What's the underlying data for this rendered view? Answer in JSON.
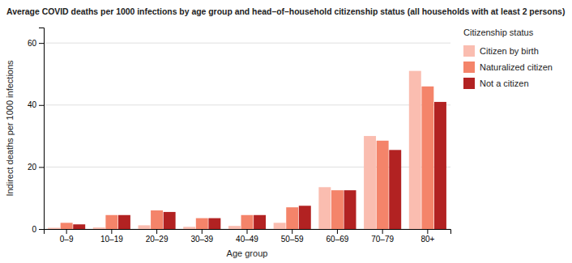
{
  "chart_data": {
    "type": "bar",
    "title": "Average COVID deaths per 1000 infections by age group and head–of–household citizenship status (all households with at least 2 persons)",
    "x_label": "Age group",
    "y_label": "Indirect deaths per 1000 infections",
    "categories": [
      "0–9",
      "10–19",
      "20–29",
      "30–39",
      "40–49",
      "50–59",
      "60–69",
      "70–79",
      "80+"
    ],
    "legend_title": "Citizenship status",
    "series": [
      {
        "name": "Citizen by birth",
        "color": "#FABDB0",
        "values": [
          0.4,
          0.5,
          1.2,
          0.7,
          1.0,
          2.0,
          13.5,
          30.0,
          51.0
        ]
      },
      {
        "name": "Naturalized citizen",
        "color": "#F4846A",
        "values": [
          2.0,
          4.5,
          6.0,
          3.5,
          4.5,
          7.0,
          12.5,
          28.5,
          46.0
        ]
      },
      {
        "name": "Not a citizen",
        "color": "#B22222",
        "values": [
          1.5,
          4.5,
          5.5,
          3.5,
          4.5,
          7.5,
          12.5,
          25.5,
          41.0
        ]
      }
    ],
    "ylim": [
      0,
      65
    ],
    "yticks": [
      0,
      20,
      40,
      60
    ],
    "grid": true,
    "legend": "upper right"
  }
}
